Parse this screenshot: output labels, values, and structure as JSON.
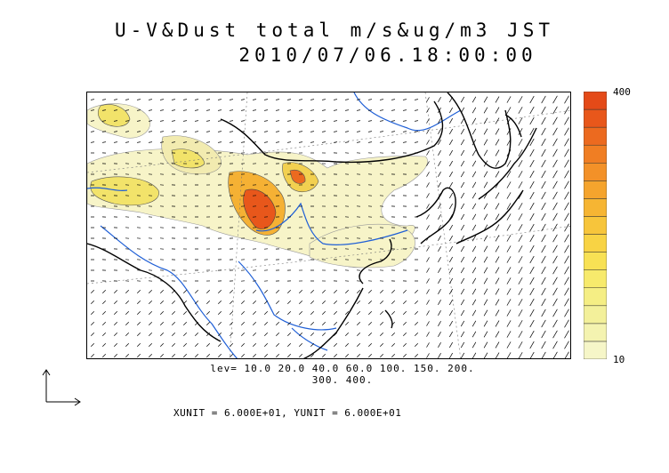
{
  "title": {
    "line1": "U-V&Dust total m/s&ug/m3 JST",
    "line2": "2010/07/06.18:00:00"
  },
  "colorbar": {
    "max_label": "400",
    "min_label": "10",
    "colors": [
      "#f6f6c8",
      "#f4f3b0",
      "#f3f09a",
      "#f5ee84",
      "#f7ea6c",
      "#f8e154",
      "#f8d344",
      "#f7c53b",
      "#f6b533",
      "#f5a42d",
      "#f39128",
      "#f07e23",
      "#ec6a1f",
      "#e8571b",
      "#e44a18"
    ]
  },
  "levels": {
    "line1": "lev= 10.0 20.0 40.0 60.0 100. 150. 200.",
    "line2": "300. 400."
  },
  "units": {
    "text": "XUNIT = 6.000E+01, YUNIT = 6.000E+01"
  },
  "map": {
    "coast_color": "#000000",
    "river_color": "#1f5fd6",
    "dust_low_color": "#f7f4c8",
    "dust_mid_color": "#f2e36a",
    "dust_high_color": "#e8571b"
  }
}
